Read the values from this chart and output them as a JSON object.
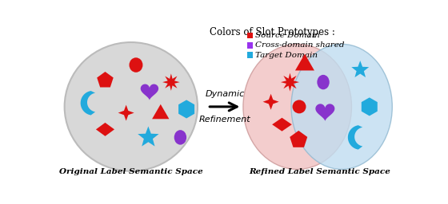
{
  "title": "Colors of Slot Prototypes :",
  "title_fontsize": 8.5,
  "legend_labels": [
    "Source Domain",
    "Cross-domain shared",
    "Target Domain"
  ],
  "legend_colors": [
    "#dd1111",
    "#9933ee",
    "#22aadd"
  ],
  "left_label": "Original Label Semantic Space",
  "right_label": "Refined Label Semantic Space",
  "arrow_top": "Dynamic",
  "arrow_bottom": "Refinement",
  "bg_color": "#ffffff",
  "left_ellipse_facecolor": "#d8d8d8",
  "left_ellipse_edgecolor": "#bbbbbb",
  "src_ellipse_facecolor": "#f2c8c8",
  "tgt_ellipse_facecolor": "#c0ddf0",
  "red": "#dd1111",
  "purple": "#8833cc",
  "cyan": "#22aadd",
  "fig_w": 5.6,
  "fig_h": 2.56,
  "dpi": 100
}
